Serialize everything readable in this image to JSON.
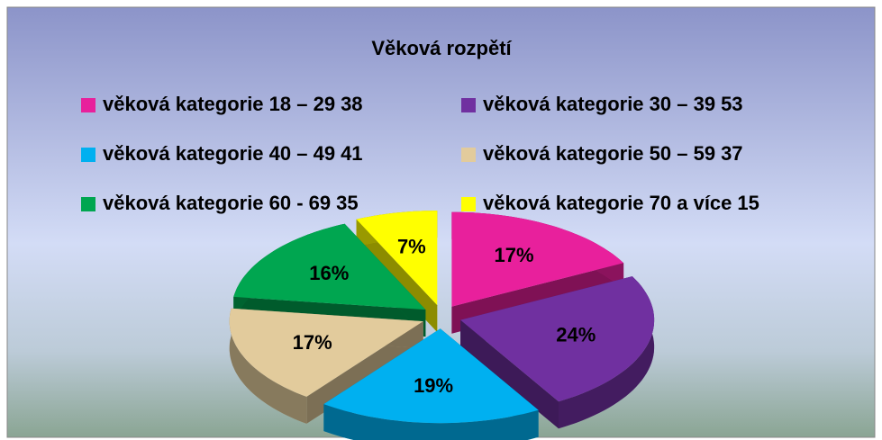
{
  "chart_data": {
    "type": "pie3d",
    "title": "Věková rozpětí",
    "categories": [
      "věková kategorie 18 – 29",
      "věková kategorie 30 – 39",
      "věková kategorie 40 – 49",
      "věková kategorie 50 – 59",
      "věková kategorie 60 - 69",
      "věková kategorie 70 a více"
    ],
    "values": [
      38,
      53,
      41,
      37,
      35,
      15
    ],
    "value_labels": [
      "17%",
      "24%",
      "19%",
      "17%",
      "16%",
      "7%"
    ],
    "colors": [
      "#e8209c",
      "#7030a0",
      "#00b0f0",
      "#e2cb9c",
      "#00a650",
      "#ffff00"
    ]
  }
}
